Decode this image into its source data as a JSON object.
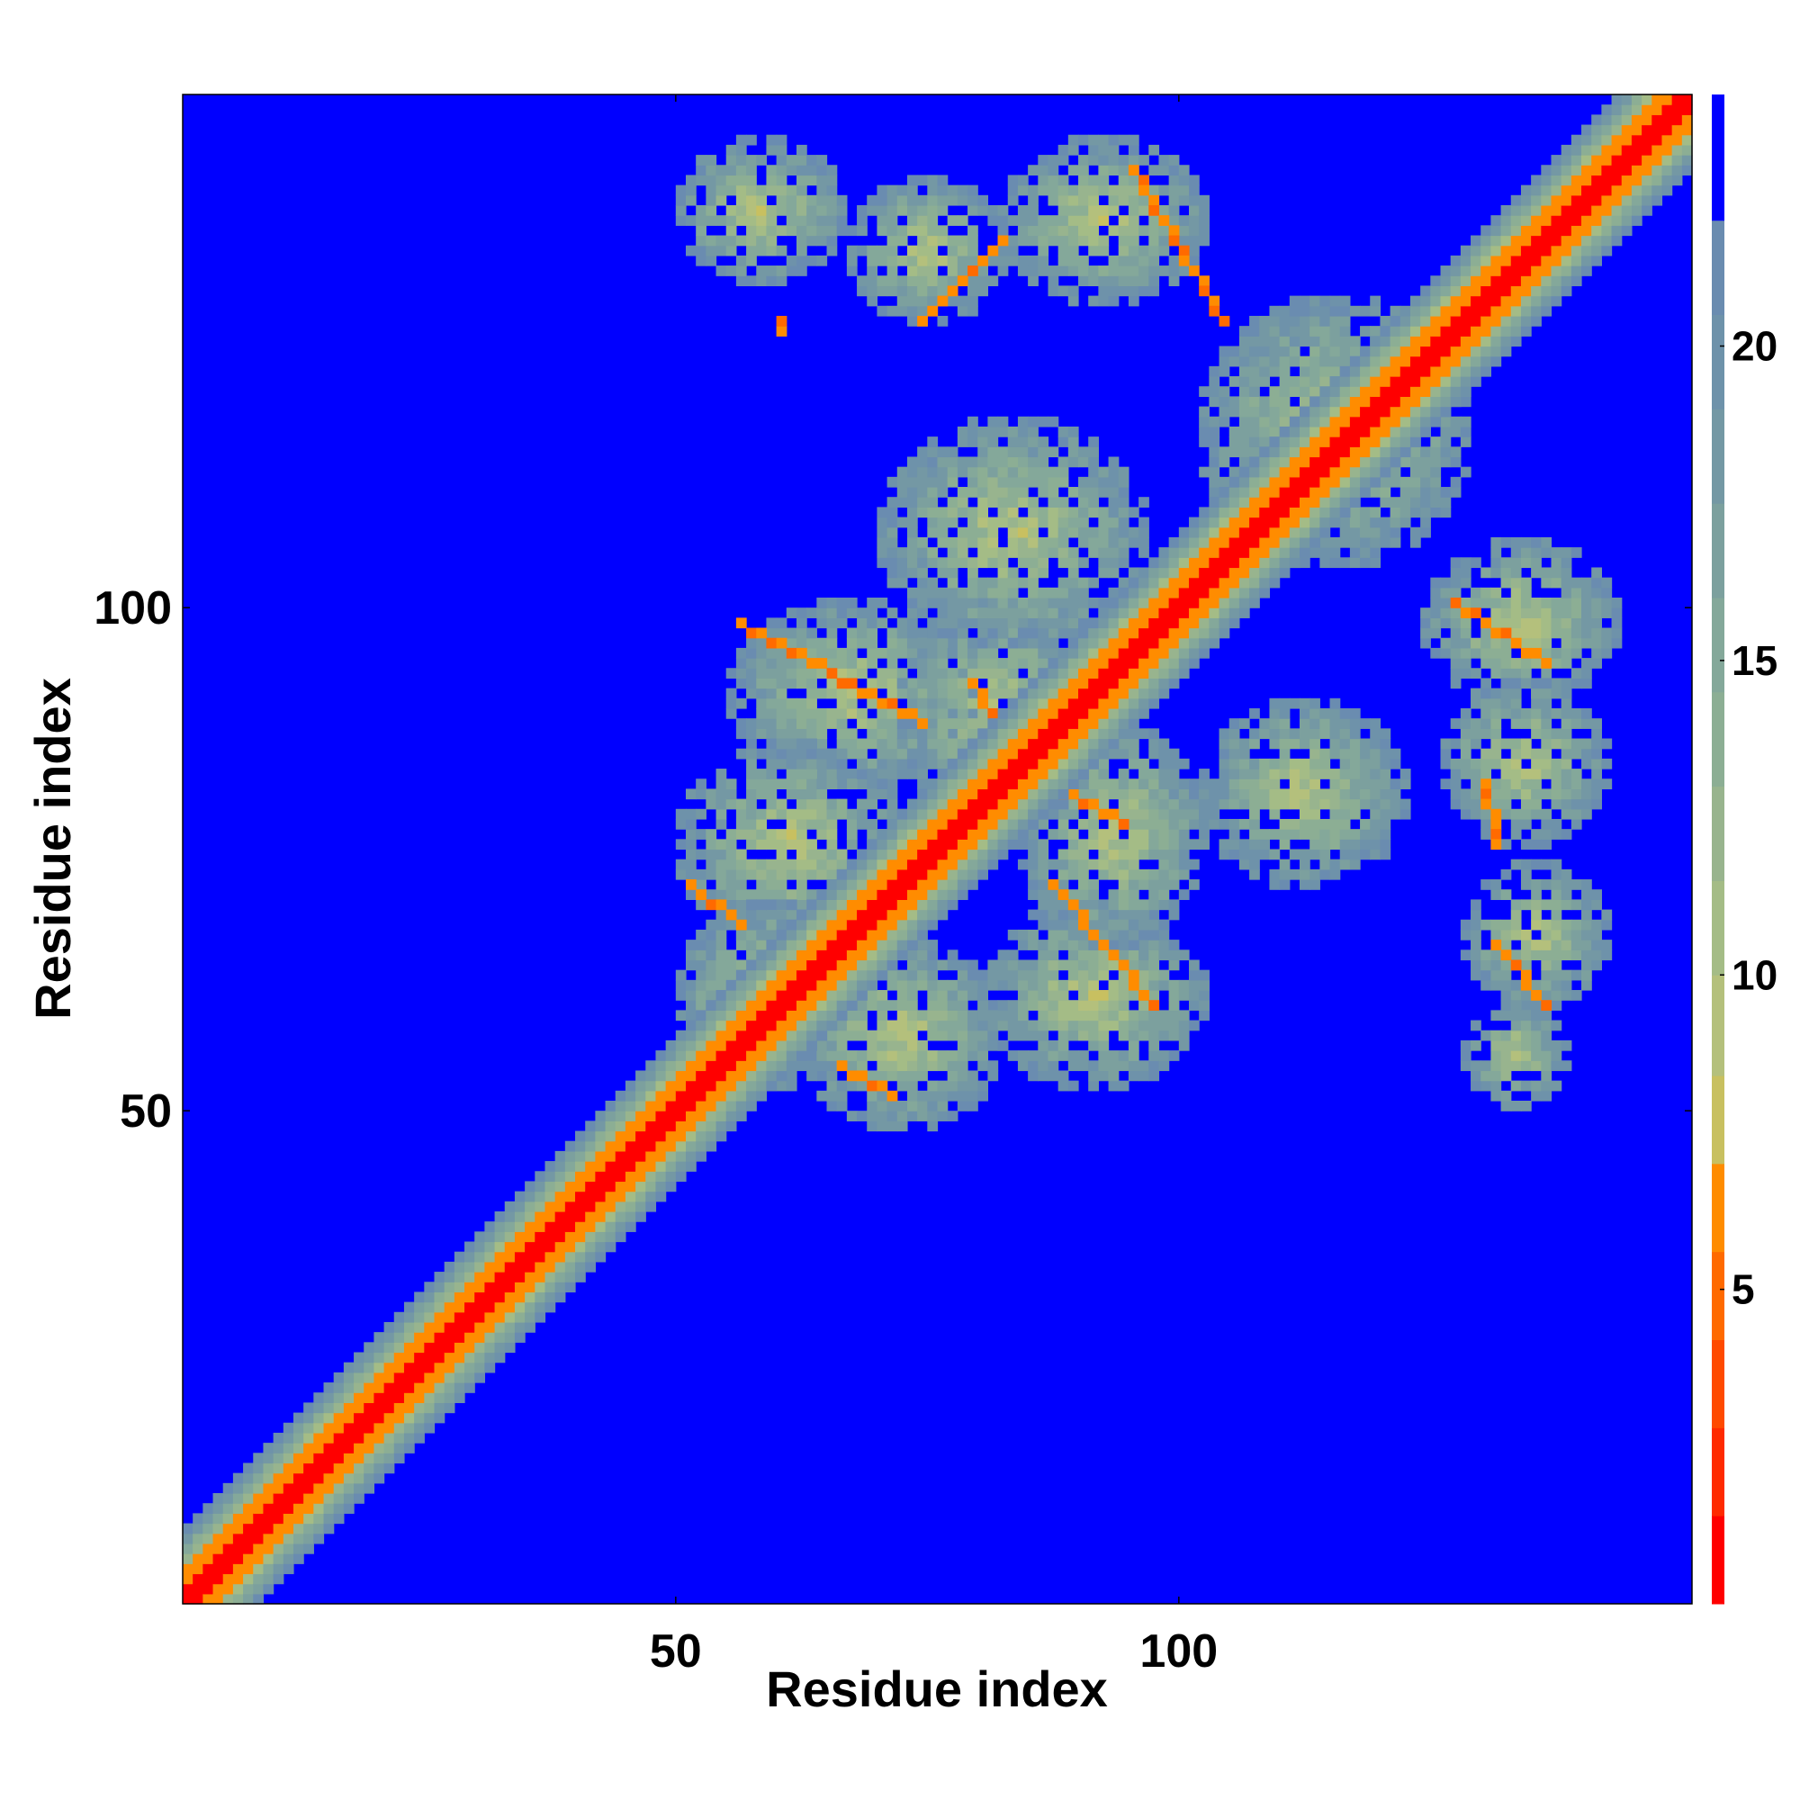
{
  "chart_data": {
    "type": "heatmap",
    "title": "",
    "xlabel": "Residue index",
    "ylabel": "Residue index",
    "n_residues": 150,
    "xlim": [
      1,
      150
    ],
    "ylim": [
      1,
      150
    ],
    "x_ticks": [
      50,
      100
    ],
    "y_ticks": [
      50,
      100
    ],
    "colorbar": {
      "range": [
        0,
        24
      ],
      "ticks": [
        5,
        10,
        15,
        20
      ],
      "position": "right",
      "bands": [
        {
          "from": 0,
          "to": 1.4,
          "color": "#ff0000"
        },
        {
          "from": 1.4,
          "to": 2.8,
          "color": "#ff2a00"
        },
        {
          "from": 2.8,
          "to": 4.2,
          "color": "#ff4a00"
        },
        {
          "from": 4.2,
          "to": 5.6,
          "color": "#ff6a00"
        },
        {
          "from": 5.6,
          "to": 7.0,
          "color": "#ff8c00"
        },
        {
          "from": 7.0,
          "to": 8.4,
          "color": "#c8c060"
        },
        {
          "from": 8.4,
          "to": 10.0,
          "color": "#b4c07c"
        },
        {
          "from": 10.0,
          "to": 11.5,
          "color": "#a4bc86"
        },
        {
          "from": 11.5,
          "to": 13.0,
          "color": "#98b48e"
        },
        {
          "from": 13.0,
          "to": 14.5,
          "color": "#8cae94"
        },
        {
          "from": 14.5,
          "to": 16.0,
          "color": "#84a89a"
        },
        {
          "from": 16.0,
          "to": 17.5,
          "color": "#7ca09e"
        },
        {
          "from": 17.5,
          "to": 19.0,
          "color": "#7498a4"
        },
        {
          "from": 19.0,
          "to": 20.5,
          "color": "#6e92aa"
        },
        {
          "from": 20.5,
          "to": 22.0,
          "color": "#6a8cb0"
        },
        {
          "from": 22.0,
          "to": 24.0,
          "color": "#0000ff"
        }
      ]
    },
    "background_color": "#0000ff",
    "diagonal_band": {
      "core_color": "#ff0000",
      "inner_color": "#ff8c00",
      "core_width": 1.5,
      "inner_width": 3,
      "outer_width": 7
    },
    "contact_regions": [
      {
        "x": [
          55,
          80
        ],
        "y": [
          82,
          100
        ]
      },
      {
        "x": [
          50,
          72
        ],
        "y": [
          66,
          86
        ]
      },
      {
        "x": [
          50,
          68
        ],
        "y": [
          52,
          70
        ]
      },
      {
        "x": [
          62,
          82
        ],
        "y": [
          48,
          66
        ]
      },
      {
        "x": [
          80,
          102
        ],
        "y": [
          52,
          70
        ]
      },
      {
        "x": [
          84,
          102
        ],
        "y": [
          66,
          88
        ]
      },
      {
        "x": [
          72,
          92
        ],
        "y": [
          78,
          100
        ]
      },
      {
        "x": [
          70,
          96
        ],
        "y": [
          96,
          118
        ]
      },
      {
        "x": [
          102,
          122
        ],
        "y": [
          72,
          90
        ]
      },
      {
        "x": [
          50,
          66
        ],
        "y": [
          132,
          146
        ]
      },
      {
        "x": [
          67,
          82
        ],
        "y": [
          128,
          142
        ]
      },
      {
        "x": [
          82,
          102
        ],
        "y": [
          130,
          146
        ]
      },
      {
        "x": [
          102,
          128
        ],
        "y": [
          104,
          130
        ]
      },
      {
        "x": [
          124,
          143
        ],
        "y": [
          90,
          106
        ]
      },
      {
        "x": [
          126,
          142
        ],
        "y": [
          76,
          92
        ]
      },
      {
        "x": [
          128,
          142
        ],
        "y": [
          60,
          74
        ]
      },
      {
        "x": [
          128,
          138
        ],
        "y": [
          50,
          60
        ]
      }
    ],
    "contact_lines": [
      {
        "from": [
          56,
          98
        ],
        "to": [
          74,
          88
        ]
      },
      {
        "from": [
          51,
          72
        ],
        "to": [
          56,
          68
        ]
      },
      {
        "from": [
          66,
          54
        ],
        "to": [
          71,
          51
        ]
      },
      {
        "from": [
          79,
          92
        ],
        "to": [
          84,
          84
        ]
      },
      {
        "from": [
          87,
          82
        ],
        "to": [
          94,
          78
        ]
      },
      {
        "from": [
          87,
          72
        ],
        "to": [
          97,
          60
        ]
      },
      {
        "from": [
          60,
          127
        ],
        "to": [
          60,
          128
        ]
      },
      {
        "from": [
          74,
          128
        ],
        "to": [
          82,
          136
        ]
      },
      {
        "from": [
          95,
          143
        ],
        "to": [
          104,
          128
        ]
      },
      {
        "from": [
          127,
          100
        ],
        "to": [
          136,
          94
        ]
      },
      {
        "from": [
          130,
          82
        ],
        "to": [
          131,
          76
        ]
      },
      {
        "from": [
          131,
          66
        ],
        "to": [
          136,
          60
        ]
      }
    ]
  }
}
